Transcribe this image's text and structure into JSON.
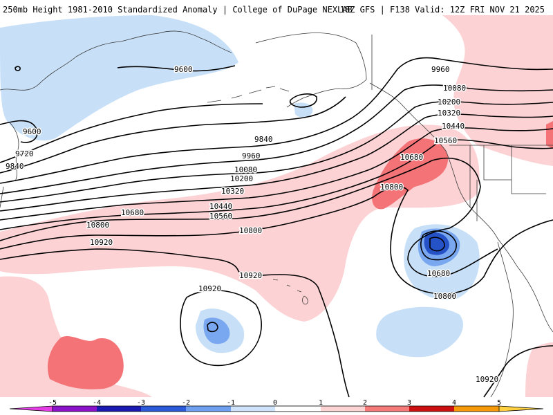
{
  "header": {
    "left_title": "250mb Height 1981-2010 Standardized Anomaly | College of DuPage NEXLAB",
    "right_title": "18Z GFS | F138 Valid: 12Z FRI NOV 21 2025"
  },
  "colorbar": {
    "ticks": [
      "-5",
      "-4",
      "-3",
      "-2",
      "-1",
      "0",
      "1",
      "2",
      "3",
      "4",
      "5"
    ],
    "colors": [
      "#e63ce6",
      "#8a12c8",
      "#1a1ab0",
      "#2a5ad8",
      "#6f9ff0",
      "#cfe3fb",
      "#ffffff",
      "#fcd4d4",
      "#f57a7a",
      "#cc1010",
      "#f59a0a",
      "#ffd040"
    ]
  },
  "contours": {
    "labels": [
      "9600",
      "9600",
      "9720",
      "9840",
      "9840",
      "9960",
      "10080",
      "10200",
      "10320",
      "10440",
      "10560",
      "10680",
      "10800",
      "10920",
      "9960",
      "10080",
      "10200",
      "10320",
      "10440",
      "10560",
      "10680",
      "10800",
      "10800",
      "10920",
      "10920",
      "10680",
      "10800",
      "10920"
    ]
  }
}
